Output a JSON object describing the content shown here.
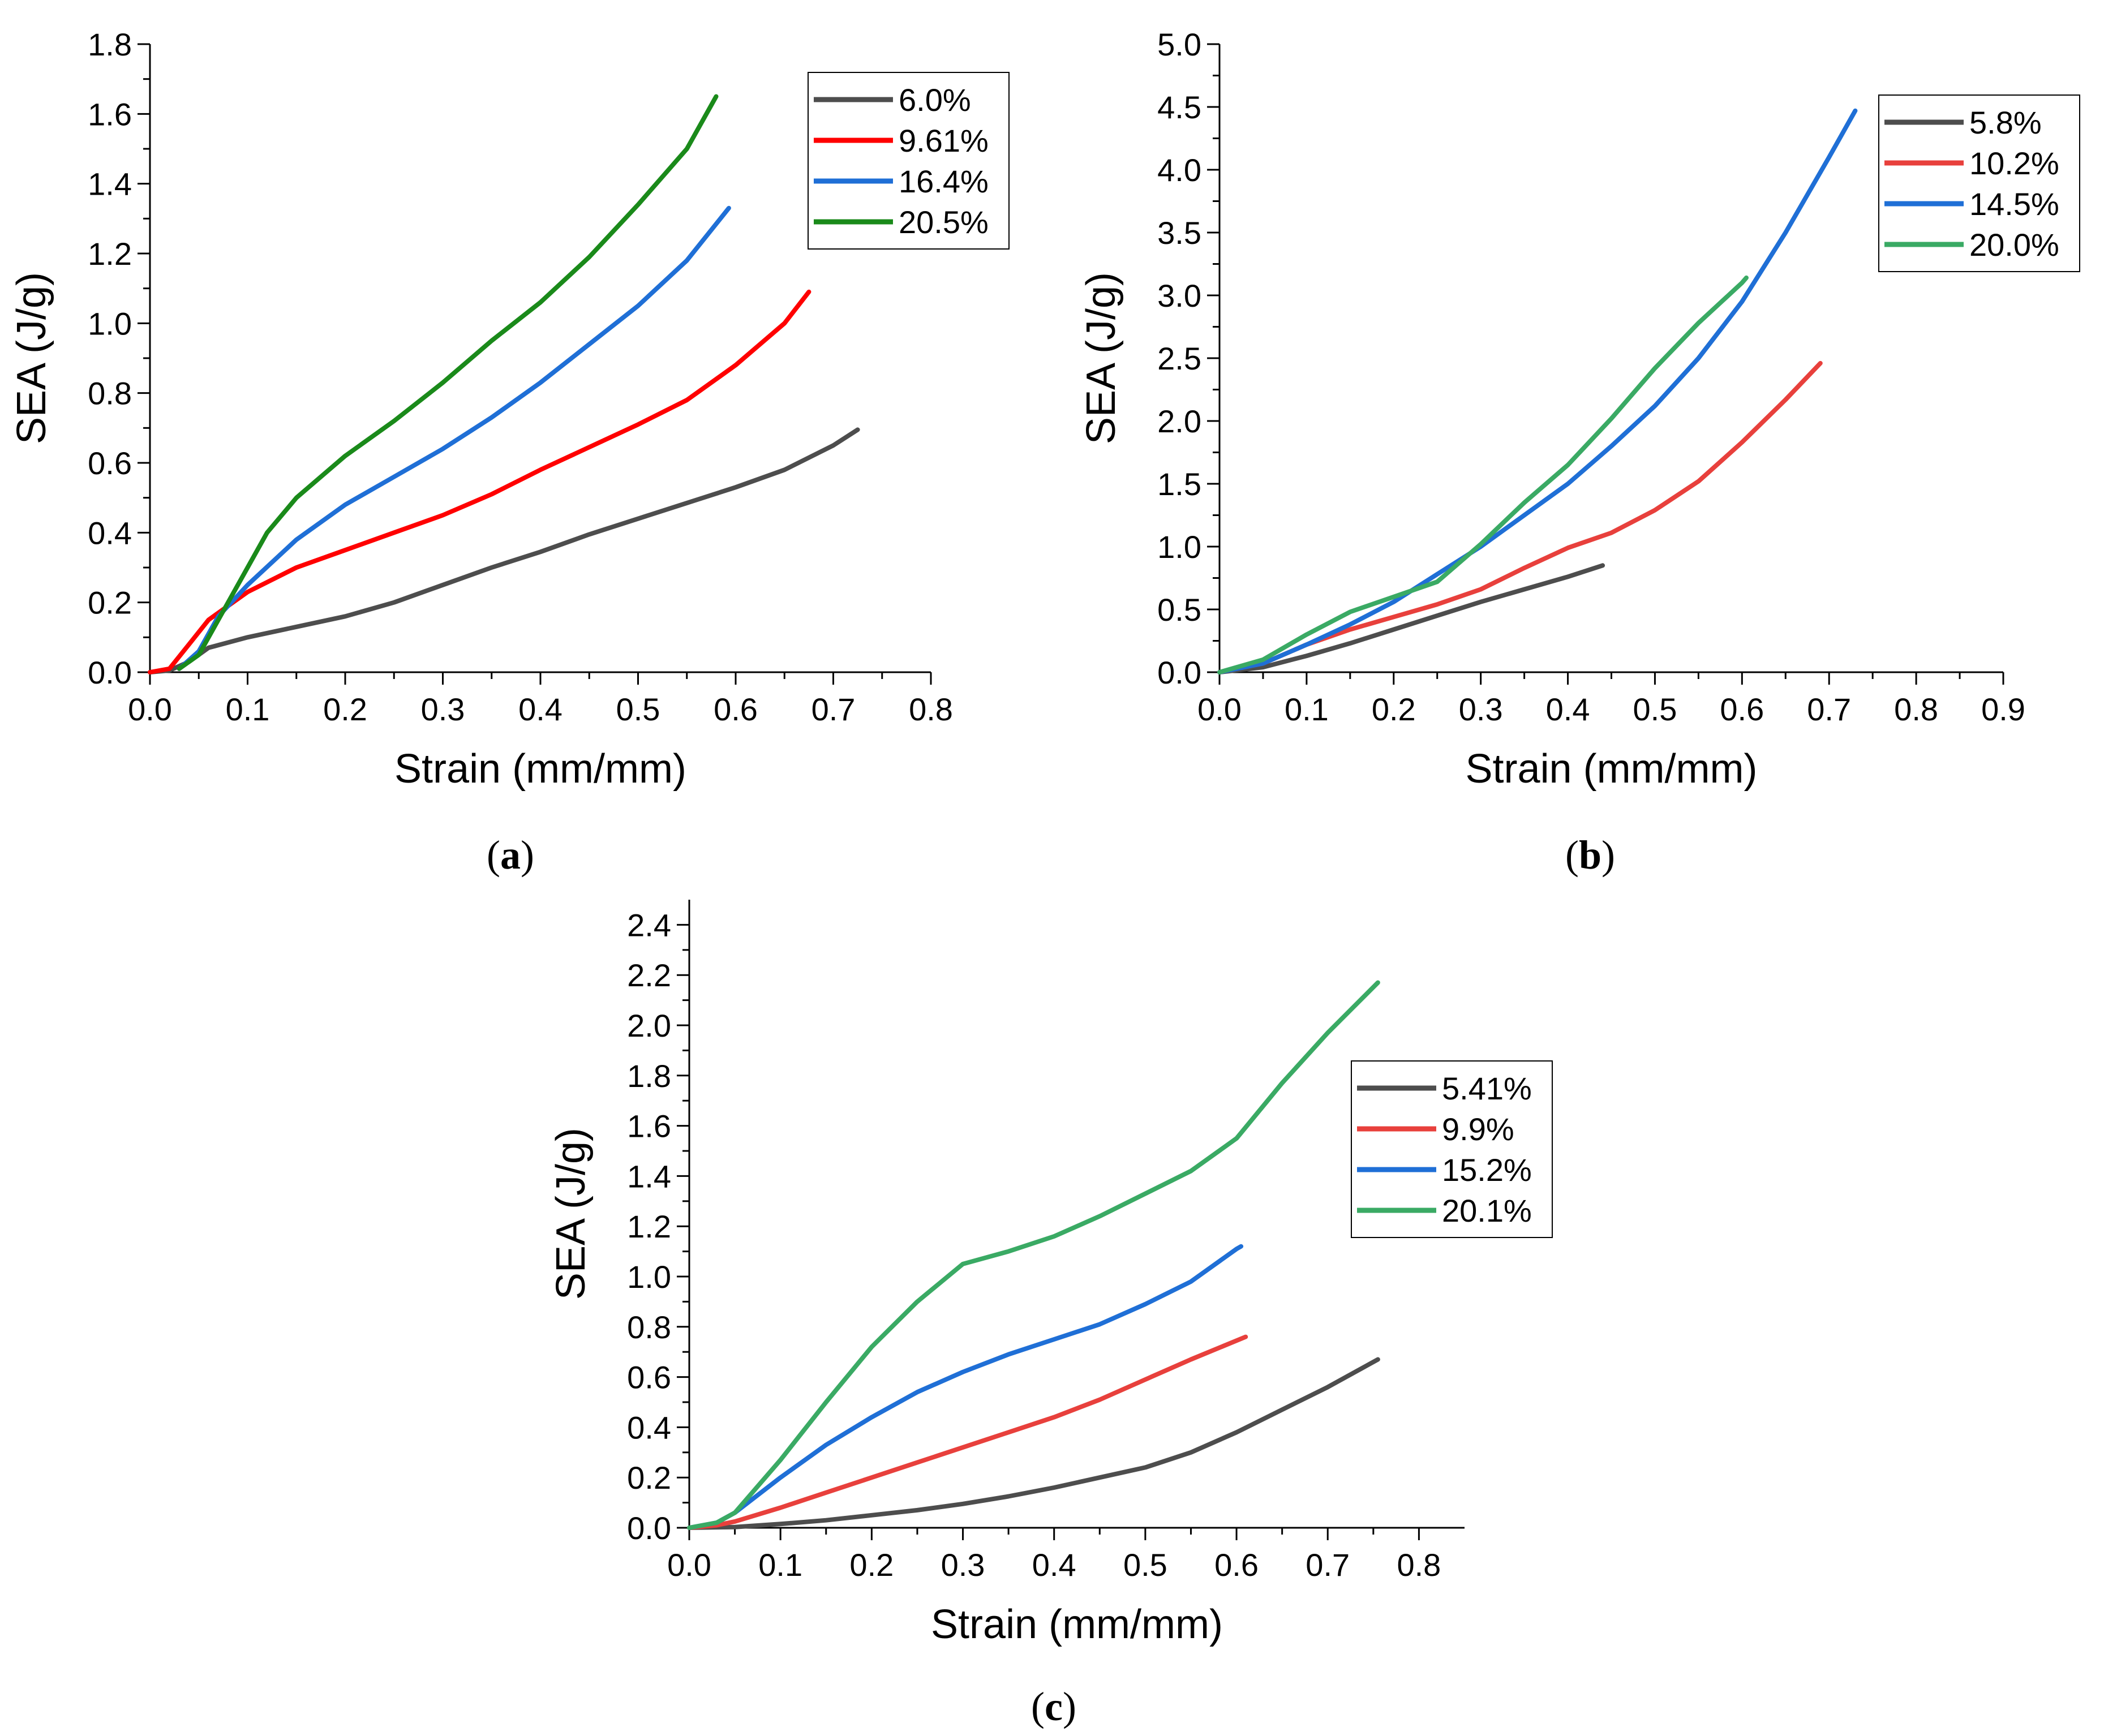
{
  "chart_data": [
    {
      "type": "line",
      "panel": "a",
      "panel_label": {
        "open": "(",
        "letter": "a",
        "close": ")"
      },
      "xlabel": "Strain (mm/mm)",
      "ylabel": "SEA (J/g)",
      "xlim": [
        0,
        0.8
      ],
      "ylim": [
        0,
        1.8
      ],
      "xticks": [
        "0.0",
        "0.1",
        "0.2",
        "0.3",
        "0.4",
        "0.5",
        "0.6",
        "0.7",
        "0.8"
      ],
      "yticks": [
        "0.0",
        "0.2",
        "0.4",
        "0.6",
        "0.8",
        "1.0",
        "1.2",
        "1.4",
        "1.6",
        "1.8"
      ],
      "legend_position": "top-right",
      "series": [
        {
          "name": "6.0%",
          "color": "#4d4d4d",
          "x": [
            0,
            0.02,
            0.04,
            0.06,
            0.1,
            0.15,
            0.2,
            0.25,
            0.3,
            0.35,
            0.4,
            0.45,
            0.5,
            0.55,
            0.6,
            0.65,
            0.7,
            0.725
          ],
          "y": [
            0,
            0.005,
            0.03,
            0.07,
            0.1,
            0.13,
            0.16,
            0.2,
            0.25,
            0.3,
            0.345,
            0.395,
            0.44,
            0.485,
            0.53,
            0.58,
            0.65,
            0.695
          ]
        },
        {
          "name": "9.61%",
          "color": "#ff0000",
          "x": [
            0,
            0.02,
            0.04,
            0.06,
            0.08,
            0.1,
            0.15,
            0.2,
            0.25,
            0.3,
            0.35,
            0.4,
            0.45,
            0.5,
            0.55,
            0.6,
            0.65,
            0.675
          ],
          "y": [
            0,
            0.01,
            0.08,
            0.15,
            0.19,
            0.23,
            0.3,
            0.35,
            0.4,
            0.45,
            0.51,
            0.58,
            0.645,
            0.71,
            0.78,
            0.88,
            1.0,
            1.09
          ]
        },
        {
          "name": "16.4%",
          "color": "#1f6fd6",
          "x": [
            0.03,
            0.05,
            0.07,
            0.1,
            0.15,
            0.2,
            0.25,
            0.3,
            0.35,
            0.4,
            0.45,
            0.5,
            0.55,
            0.593
          ],
          "y": [
            0.01,
            0.06,
            0.16,
            0.25,
            0.38,
            0.48,
            0.56,
            0.64,
            0.73,
            0.83,
            0.94,
            1.05,
            1.18,
            1.33
          ]
        },
        {
          "name": "20.5%",
          "color": "#1a8a1a",
          "x": [
            0.03,
            0.05,
            0.08,
            0.1,
            0.12,
            0.15,
            0.2,
            0.25,
            0.3,
            0.35,
            0.4,
            0.45,
            0.5,
            0.55,
            0.58
          ],
          "y": [
            0.01,
            0.05,
            0.2,
            0.3,
            0.4,
            0.5,
            0.62,
            0.72,
            0.83,
            0.95,
            1.06,
            1.19,
            1.34,
            1.5,
            1.65
          ]
        }
      ]
    },
    {
      "type": "line",
      "panel": "b",
      "panel_label": {
        "open": "(",
        "letter": "b",
        "close": ")"
      },
      "xlabel": "Strain (mm/mm)",
      "ylabel": "SEA (J/g)",
      "xlim": [
        0,
        0.9
      ],
      "ylim": [
        0,
        5.0
      ],
      "xticks": [
        "0.0",
        "0.1",
        "0.2",
        "0.3",
        "0.4",
        "0.5",
        "0.6",
        "0.7",
        "0.8",
        "0.9"
      ],
      "yticks": [
        "0.0",
        "0.5",
        "1.0",
        "1.5",
        "2.0",
        "2.5",
        "3.0",
        "3.5",
        "4.0",
        "4.5",
        "5.0"
      ],
      "legend_position": "top-right",
      "series": [
        {
          "name": "5.8%",
          "color": "#4d4d4d",
          "x": [
            0,
            0.05,
            0.1,
            0.15,
            0.2,
            0.25,
            0.3,
            0.35,
            0.4,
            0.44
          ],
          "y": [
            0,
            0.04,
            0.13,
            0.23,
            0.34,
            0.45,
            0.56,
            0.66,
            0.76,
            0.85
          ]
        },
        {
          "name": "10.2%",
          "color": "#e8403c",
          "x": [
            0,
            0.05,
            0.1,
            0.15,
            0.2,
            0.25,
            0.3,
            0.35,
            0.4,
            0.45,
            0.5,
            0.55,
            0.6,
            0.65,
            0.69
          ],
          "y": [
            0,
            0.07,
            0.22,
            0.34,
            0.44,
            0.54,
            0.66,
            0.83,
            0.99,
            1.11,
            1.29,
            1.52,
            1.83,
            2.17,
            2.46
          ]
        },
        {
          "name": "14.5%",
          "color": "#1f6fd6",
          "x": [
            0,
            0.05,
            0.1,
            0.15,
            0.2,
            0.25,
            0.3,
            0.35,
            0.4,
            0.45,
            0.5,
            0.55,
            0.6,
            0.65,
            0.7,
            0.73
          ],
          "y": [
            0,
            0.07,
            0.22,
            0.38,
            0.56,
            0.78,
            1.0,
            1.25,
            1.5,
            1.8,
            2.12,
            2.5,
            2.95,
            3.5,
            4.1,
            4.47
          ]
        },
        {
          "name": "20.0%",
          "color": "#3aaa64",
          "x": [
            0,
            0.05,
            0.1,
            0.15,
            0.2,
            0.25,
            0.3,
            0.35,
            0.4,
            0.45,
            0.5,
            0.55,
            0.6,
            0.605
          ],
          "y": [
            0,
            0.1,
            0.3,
            0.48,
            0.6,
            0.72,
            1.02,
            1.35,
            1.65,
            2.02,
            2.42,
            2.78,
            3.1,
            3.14
          ]
        }
      ]
    },
    {
      "type": "line",
      "panel": "c",
      "panel_label": {
        "open": "(",
        "letter": "c",
        "close": ")"
      },
      "xlabel": "Strain (mm/mm)",
      "ylabel": "SEA (J/g)",
      "xlim": [
        0,
        0.85
      ],
      "ylim": [
        0,
        2.5
      ],
      "xticks": [
        "0.0",
        "0.1",
        "0.2",
        "0.3",
        "0.4",
        "0.5",
        "0.6",
        "0.7",
        "0.8"
      ],
      "yticks": [
        "0.0",
        "0.2",
        "0.4",
        "0.6",
        "0.8",
        "1.0",
        "1.2",
        "1.4",
        "1.6",
        "1.8",
        "2.0",
        "2.2",
        "2.4"
      ],
      "legend_position": "right",
      "series": [
        {
          "name": "5.41%",
          "color": "#4d4d4d",
          "x": [
            0,
            0.05,
            0.1,
            0.15,
            0.2,
            0.25,
            0.3,
            0.35,
            0.4,
            0.45,
            0.5,
            0.55,
            0.6,
            0.65,
            0.7,
            0.755
          ],
          "y": [
            0,
            0.003,
            0.015,
            0.03,
            0.05,
            0.07,
            0.095,
            0.125,
            0.16,
            0.2,
            0.24,
            0.3,
            0.38,
            0.47,
            0.56,
            0.67
          ]
        },
        {
          "name": "9.9%",
          "color": "#e8403c",
          "x": [
            0,
            0.03,
            0.05,
            0.1,
            0.15,
            0.2,
            0.25,
            0.3,
            0.35,
            0.4,
            0.45,
            0.5,
            0.55,
            0.61
          ],
          "y": [
            0,
            0.01,
            0.025,
            0.08,
            0.14,
            0.2,
            0.26,
            0.32,
            0.38,
            0.44,
            0.51,
            0.59,
            0.67,
            0.76
          ]
        },
        {
          "name": "15.2%",
          "color": "#1f6fd6",
          "x": [
            0,
            0.03,
            0.05,
            0.1,
            0.15,
            0.2,
            0.25,
            0.3,
            0.35,
            0.4,
            0.45,
            0.5,
            0.55,
            0.6,
            0.605
          ],
          "y": [
            0,
            0.02,
            0.06,
            0.2,
            0.33,
            0.44,
            0.54,
            0.62,
            0.69,
            0.75,
            0.81,
            0.89,
            0.98,
            1.11,
            1.12
          ]
        },
        {
          "name": "20.1%",
          "color": "#3aaa64",
          "x": [
            0,
            0.03,
            0.05,
            0.1,
            0.15,
            0.2,
            0.25,
            0.3,
            0.35,
            0.4,
            0.45,
            0.5,
            0.55,
            0.6,
            0.65,
            0.7,
            0.755
          ],
          "y": [
            0,
            0.02,
            0.06,
            0.27,
            0.5,
            0.72,
            0.9,
            1.05,
            1.1,
            1.16,
            1.24,
            1.33,
            1.42,
            1.55,
            1.77,
            1.97,
            2.17
          ]
        }
      ]
    }
  ]
}
